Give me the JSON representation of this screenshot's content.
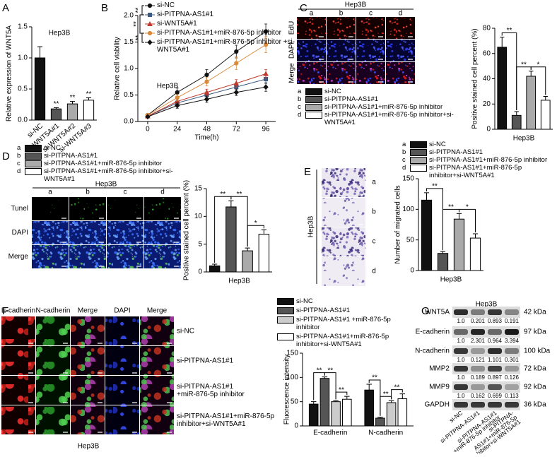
{
  "panel_labels": [
    "A",
    "B",
    "C",
    "D",
    "E",
    "F",
    "G"
  ],
  "chart_data": [
    {
      "type": "bar",
      "title": "Hep3B",
      "ylabel": "Relative expression of WNT5A",
      "categories": [
        "si-NC",
        "si-WNT5A#1",
        "si-WNT5A#2",
        "si-WNT5A#3"
      ],
      "values": [
        1.0,
        0.18,
        0.26,
        0.32
      ],
      "errors": [
        0.18,
        0.02,
        0.04,
        0.04
      ],
      "value_annotations": [
        null,
        "**",
        "**",
        "**"
      ],
      "colors": [
        "#111111",
        "#555555",
        "#aaaaaa",
        "#ffffff"
      ],
      "ylim": [
        0,
        1.5
      ],
      "yticks": [
        {
          "value": 0,
          "label": "0.0"
        },
        0.5,
        {
          "value": 1,
          "label": "1.0"
        },
        1.5
      ]
    },
    {
      "type": "line",
      "title": "Hep3B",
      "ylabel": "Relative cell viability",
      "xlabel": "Time(h)",
      "x": [
        0,
        24,
        48,
        72,
        96
      ],
      "xlim": [
        -8,
        104
      ],
      "xticks": [
        0,
        24,
        48,
        72,
        96
      ],
      "ylim": [
        0,
        2
      ],
      "yticks": [
        {
          "value": 0,
          "label": "0.0"
        },
        0.5,
        {
          "value": 1,
          "label": "1.0"
        },
        1.5,
        {
          "value": 2,
          "label": "2.0"
        }
      ],
      "significance": [
        "**",
        "**",
        "**"
      ],
      "series": [
        {
          "name": "si-NC",
          "color": "#111111",
          "marker": "circle",
          "values": [
            0.12,
            0.55,
            0.88,
            1.32,
            1.7
          ],
          "errors": [
            0.02,
            0.08,
            0.1,
            0.12,
            0.14
          ]
        },
        {
          "name": "si-PITPNA-AS1#1",
          "color": "#3d5a80",
          "marker": "square",
          "values": [
            0.1,
            0.35,
            0.5,
            0.65,
            0.8
          ],
          "errors": [
            0.02,
            0.05,
            0.06,
            0.08,
            0.08
          ]
        },
        {
          "name": "si-WNT5A#1",
          "color": "#c0392b",
          "marker": "triangle",
          "values": [
            0.1,
            0.38,
            0.55,
            0.72,
            0.9
          ],
          "errors": [
            0.02,
            0.05,
            0.06,
            0.07,
            0.08
          ]
        },
        {
          "name": "si-PITPNA-AS1#1+miR-876-5p inhibitor",
          "color": "#d98a3a",
          "marker": "circle",
          "values": [
            0.12,
            0.45,
            0.75,
            1.1,
            1.45
          ],
          "errors": [
            0.02,
            0.06,
            0.08,
            0.12,
            0.15
          ]
        },
        {
          "name": "si-PITPNA-AS1#1+miR-876-5p inhibitor +si-WNT5A#1",
          "color": "#111111",
          "marker": "diamond",
          "values": [
            0.09,
            0.3,
            0.42,
            0.55,
            0.65
          ],
          "errors": [
            0.02,
            0.05,
            0.06,
            0.06,
            0.08
          ]
        }
      ]
    },
    {
      "type": "bar",
      "ylabel": "Positive stained cell percent (%)",
      "xlabel": "Hep3B",
      "values": [
        65,
        11,
        42,
        23
      ],
      "errors": [
        8,
        3,
        4,
        3
      ],
      "significance": [
        "**",
        "**",
        "*"
      ],
      "colors": [
        "#111111",
        "#555555",
        "#aaaaaa",
        "#ffffff"
      ],
      "ylim": [
        0,
        80
      ],
      "yticks": [
        0,
        20,
        40,
        60,
        80
      ]
    },
    {
      "type": "bar",
      "ylabel": "Positive stained cell percent (%)",
      "xlabel": "Hep3B",
      "values": [
        1.1,
        11.7,
        3.8,
        6.8
      ],
      "errors": [
        0.3,
        1.1,
        0.5,
        0.8
      ],
      "significance": [
        "**",
        "**",
        "*"
      ],
      "colors": [
        "#111111",
        "#555555",
        "#aaaaaa",
        "#ffffff"
      ],
      "ylim": [
        0,
        15
      ],
      "yticks": [
        0,
        5,
        10,
        15
      ]
    },
    {
      "type": "bar",
      "ylabel": "Number of migrated cells",
      "xlabel": "Hep3B",
      "values": [
        115,
        28,
        84,
        53
      ],
      "errors": [
        12,
        3,
        9,
        7
      ],
      "significance": [
        "**",
        "**",
        "*"
      ],
      "colors": [
        "#111111",
        "#555555",
        "#aaaaaa",
        "#ffffff"
      ],
      "ylim": [
        0,
        150
      ],
      "yticks": [
        0,
        50,
        100,
        150
      ]
    },
    {
      "type": "bar",
      "ylabel": "Fluorescence intensity",
      "categories": [
        "E-cadherin",
        "N-cadherin"
      ],
      "ylim": [
        0,
        150
      ],
      "yticks": [
        0,
        50,
        100,
        150
      ],
      "significance": [
        [
          "**",
          "**",
          "**"
        ],
        [
          "**",
          "**",
          "**"
        ]
      ],
      "series": [
        {
          "name": "si-NC",
          "color": "#111111",
          "values": [
            45,
            74
          ],
          "errors": [
            5,
            12
          ]
        },
        {
          "name": "si-PITPNA-AS1#1",
          "color": "#555555",
          "values": [
            98,
            16
          ],
          "errors": [
            3,
            2
          ]
        },
        {
          "name": "si-PITPNA-AS1#1 +miR-876-5p inhibitor",
          "color": "#cccccc",
          "values": [
            50,
            48
          ],
          "errors": [
            2,
            4
          ]
        },
        {
          "name": "si-PITPNA-AS1#1+miR-876-5p inhibitor+si-WNT5A#1",
          "color": "#ffffff",
          "values": [
            55,
            56
          ],
          "errors": [
            6,
            10
          ]
        }
      ]
    }
  ],
  "edu_panel": {
    "title": "Hep3B",
    "columns": [
      "a",
      "b",
      "c",
      "d"
    ],
    "rows": [
      "EdU",
      "DAPI",
      "Merge"
    ],
    "legend": [
      {
        "key": "a",
        "name": "si-NC"
      },
      {
        "key": "b",
        "name": "si-PITPNA-AS1#1"
      },
      {
        "key": "c",
        "name": "si-PITPNA-AS1#1+miR-876-5p inhibitor"
      },
      {
        "key": "d",
        "name": "si-PITPNA-AS1#1+miR-876-5p inhibitor+si-WNT5A#1"
      }
    ]
  },
  "tunel_panel": {
    "title": "Hep3B",
    "columns": [
      "a",
      "b",
      "c",
      "d"
    ],
    "rows": [
      "Tunel",
      "DAPI",
      "Merge"
    ],
    "legend": [
      {
        "key": "a",
        "name": "si-NC"
      },
      {
        "key": "b",
        "name": "si-PITPNA-AS1#1"
      },
      {
        "key": "c",
        "name": "si-PITPNA-AS1#1+miR-876-5p inhibitor"
      },
      {
        "key": "d",
        "name": "si-PITPNA-AS1#1+miR-876-5p inhibitor+si-WNT5A#1"
      }
    ]
  },
  "migration_panel": {
    "side_label": "Hep3B",
    "rows": [
      "a",
      "b",
      "c",
      "d"
    ],
    "legend": [
      {
        "key": "a",
        "name": "si-NC"
      },
      {
        "key": "b",
        "name": "si-PITPNA-AS1#1"
      },
      {
        "key": "c",
        "name": "si-PITPNA-AS1#1+miR-876-5p inhibitor"
      },
      {
        "key": "d",
        "name": "si-PITPNA-AS1#1+miR-876-5p inhibitor+si-WNT5A#1"
      }
    ]
  },
  "if_panel": {
    "columns": [
      "E-cadherin",
      "N-cadherin",
      "Merge",
      "DAPI",
      "Merge"
    ],
    "rows": [
      [
        "si-NC"
      ],
      [
        "si-PITPNA-AS1#1"
      ],
      [
        "si-PITPNA-AS1#1",
        "+miR-876-5p inhibitor"
      ],
      [
        "si-PITPNA-AS1#1+miR-876-5p",
        "inhibitor+si-WNT5A#1"
      ]
    ],
    "caption": "Hep3B"
  },
  "blot": {
    "title": "Hep3B",
    "rows": [
      {
        "protein": "WNT5A",
        "size": "42 kDa",
        "ratios": [
          "1.0",
          "0.201",
          "0.893",
          "0.191"
        ]
      },
      {
        "protein": "E-cadherin",
        "size": "97 kDa",
        "ratios": [
          "1.0",
          "2.301",
          "0.964",
          "3.394"
        ]
      },
      {
        "protein": "N-cadherin",
        "size": "100 kDa",
        "ratios": [
          "1.0",
          "0.121",
          "1.101",
          "0.301"
        ]
      },
      {
        "protein": "MMP2",
        "size": "72 kDa",
        "ratios": [
          "1.0",
          "0.189",
          "0.897",
          "0.126"
        ]
      },
      {
        "protein": "MMP9",
        "size": "92 kDa",
        "ratios": [
          "1.0",
          "0.162",
          "0.699",
          "0.113"
        ]
      },
      {
        "protein": "GAPDH",
        "size": "36 kDa"
      }
    ],
    "lanes": [
      [
        "si-NC"
      ],
      [
        "si-PITPNA-AS1#1"
      ],
      [
        "si-PITPNA-AS1#1",
        "+miR-876-5p inhibitor"
      ],
      [
        "si-PITPNA-",
        "AS1#1+miR-876-5p",
        "inhibitor+si-WNT5A#1"
      ]
    ]
  }
}
